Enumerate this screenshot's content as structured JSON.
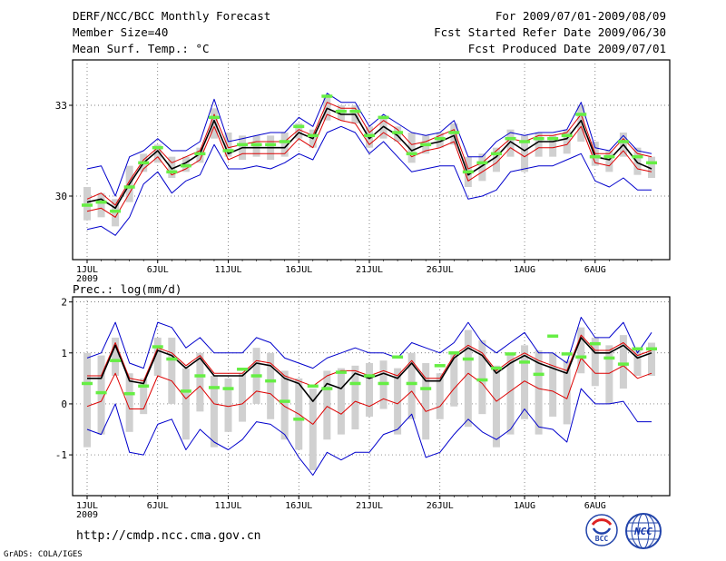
{
  "header": {
    "title": "DERF/NCC/BCC Monthly Forecast",
    "member_size": "Member Size=40",
    "variable_temp": "Mean Surf. Temp.: °C",
    "period": "For 2009/07/01-2009/08/09",
    "started_refer": "Fcst Started Refer Date 2009/06/30",
    "produced": "Fcst Produced Date 2009/07/01"
  },
  "footer": {
    "url": "http://cmdp.ncc.cma.gov.cn",
    "credit": "GrADS: COLA/IGES",
    "logo_bcc_text": "BCC",
    "logo_ncc_text": "NCC"
  },
  "colors": {
    "envelope": "#0000cc",
    "percentile": "#dd0000",
    "median": "#000000",
    "box": "#d0d0d0",
    "observed": "#66ee44"
  },
  "chart_data": [
    {
      "type": "line",
      "id": "temp",
      "title": "Mean Surf. Temp.: °C",
      "xlabel": "",
      "ylabel": "°C",
      "xlim": [
        0,
        40
      ],
      "ylim": [
        27.9,
        34.5
      ],
      "yticks": [
        30,
        33
      ],
      "ytick_labels": [
        "30",
        "33"
      ],
      "grid": true,
      "xtick_days": [
        0,
        5,
        10,
        15,
        20,
        25,
        31,
        36
      ],
      "xtick_labels": [
        "1JUL",
        "6JUL",
        "11JUL",
        "16JUL",
        "21JUL",
        "26JUL",
        "1AUG",
        "6AUG"
      ],
      "year_label": "2009",
      "series": [
        {
          "name": "max",
          "color": "envelope",
          "values": [
            30.9,
            31.0,
            30.0,
            31.3,
            31.5,
            31.9,
            31.5,
            31.5,
            31.8,
            33.2,
            31.8,
            31.9,
            32.0,
            32.1,
            32.1,
            32.6,
            32.3,
            33.4,
            33.1,
            33.1,
            32.3,
            32.7,
            32.4,
            32.1,
            32.0,
            32.1,
            32.5,
            31.3,
            31.3,
            31.8,
            32.1,
            32.0,
            32.1,
            32.1,
            32.2,
            33.1,
            31.6,
            31.5,
            32.0,
            31.5,
            31.4
          ]
        },
        {
          "name": "upper",
          "color": "percentile",
          "values": [
            29.9,
            30.1,
            29.7,
            30.5,
            31.2,
            31.6,
            31.1,
            31.3,
            31.5,
            32.7,
            31.6,
            31.7,
            31.8,
            31.8,
            31.8,
            32.2,
            32.0,
            33.1,
            32.9,
            32.9,
            32.1,
            32.5,
            32.2,
            31.7,
            31.8,
            32.0,
            32.2,
            30.9,
            31.1,
            31.5,
            31.9,
            31.8,
            32.0,
            32.0,
            32.1,
            32.7,
            31.4,
            31.4,
            31.9,
            31.4,
            31.3
          ]
        },
        {
          "name": "median",
          "color": "median",
          "values": [
            29.8,
            29.9,
            29.6,
            30.4,
            31.1,
            31.5,
            30.9,
            31.1,
            31.4,
            32.5,
            31.4,
            31.6,
            31.6,
            31.6,
            31.6,
            32.1,
            31.9,
            32.9,
            32.7,
            32.7,
            31.9,
            32.3,
            32.0,
            31.5,
            31.7,
            31.8,
            32.0,
            30.7,
            31.0,
            31.3,
            31.8,
            31.5,
            31.8,
            31.8,
            31.9,
            32.5,
            31.3,
            31.2,
            31.7,
            31.1,
            30.9
          ]
        },
        {
          "name": "lower",
          "color": "percentile",
          "values": [
            29.5,
            29.6,
            29.3,
            30.1,
            30.9,
            31.3,
            30.7,
            30.9,
            31.2,
            32.3,
            31.2,
            31.4,
            31.4,
            31.4,
            31.4,
            31.9,
            31.6,
            32.7,
            32.5,
            32.4,
            31.7,
            32.1,
            31.8,
            31.3,
            31.5,
            31.6,
            31.8,
            30.5,
            30.8,
            31.1,
            31.6,
            31.3,
            31.6,
            31.6,
            31.7,
            32.3,
            31.1,
            31.0,
            31.5,
            30.9,
            30.8
          ]
        },
        {
          "name": "min",
          "color": "envelope",
          "values": [
            28.9,
            29.0,
            28.7,
            29.3,
            30.4,
            30.8,
            30.1,
            30.5,
            30.7,
            31.7,
            30.9,
            30.9,
            31.0,
            30.9,
            31.1,
            31.4,
            31.2,
            32.1,
            32.3,
            32.1,
            31.4,
            31.8,
            31.3,
            30.8,
            30.9,
            31.0,
            31.0,
            29.9,
            30.0,
            30.2,
            30.8,
            30.9,
            31.0,
            31.0,
            31.2,
            31.4,
            30.5,
            30.3,
            30.6,
            30.2,
            30.2
          ]
        }
      ],
      "boxes": [
        [
          29.2,
          30.3
        ],
        [
          29.3,
          30.1
        ],
        [
          29.0,
          29.9
        ],
        [
          29.8,
          31.0
        ],
        [
          30.8,
          31.4
        ],
        [
          31.1,
          31.7
        ],
        [
          30.6,
          31.3
        ],
        [
          30.8,
          31.3
        ],
        [
          31.1,
          31.6
        ],
        [
          31.9,
          32.9
        ],
        [
          31.3,
          32.1
        ],
        [
          31.2,
          32.0
        ],
        [
          31.3,
          32.0
        ],
        [
          31.2,
          32.0
        ],
        [
          31.3,
          32.1
        ],
        [
          31.9,
          32.4
        ],
        [
          31.6,
          32.2
        ],
        [
          32.5,
          33.3
        ],
        [
          32.5,
          33.0
        ],
        [
          32.4,
          33.0
        ],
        [
          31.6,
          32.3
        ],
        [
          31.9,
          32.6
        ],
        [
          31.8,
          32.3
        ],
        [
          31.1,
          32.1
        ],
        [
          31.4,
          32.0
        ],
        [
          31.6,
          32.1
        ],
        [
          31.7,
          32.4
        ],
        [
          30.3,
          31.3
        ],
        [
          30.5,
          31.4
        ],
        [
          30.8,
          31.6
        ],
        [
          31.3,
          32.2
        ],
        [
          30.8,
          32.0
        ],
        [
          31.3,
          32.1
        ],
        [
          31.3,
          32.0
        ],
        [
          31.4,
          32.2
        ],
        [
          31.8,
          33.0
        ],
        [
          31.0,
          31.8
        ],
        [
          30.8,
          31.5
        ],
        [
          31.3,
          32.1
        ],
        [
          30.7,
          31.6
        ],
        [
          30.6,
          31.3
        ]
      ],
      "observed": [
        29.7,
        29.8,
        29.5,
        30.3,
        31.1,
        31.6,
        30.8,
        31.0,
        31.4,
        32.6,
        31.5,
        31.7,
        31.7,
        31.7,
        31.8,
        32.3,
        32.0,
        33.3,
        32.8,
        32.8,
        32.0,
        32.6,
        32.1,
        31.4,
        31.7,
        31.9,
        32.1,
        30.8,
        31.1,
        31.4,
        31.9,
        31.8,
        31.9,
        31.9,
        32.0,
        32.7,
        31.3,
        31.3,
        31.8,
        31.3,
        31.1
      ]
    },
    {
      "type": "line",
      "id": "prec",
      "title": "Prec.: log(mm/d)",
      "xlabel": "",
      "ylabel": "log(mm/d)",
      "xlim": [
        0,
        40
      ],
      "ylim": [
        -1.8,
        2.1
      ],
      "yticks": [
        -1,
        0,
        1,
        2
      ],
      "ytick_labels": [
        "-1",
        "0",
        "1",
        "2"
      ],
      "grid": true,
      "xtick_days": [
        0,
        5,
        10,
        15,
        20,
        25,
        31,
        36
      ],
      "xtick_labels": [
        "1JUL",
        "6JUL",
        "11JUL",
        "16JUL",
        "21JUL",
        "26JUL",
        "1AUG",
        "6AUG"
      ],
      "year_label": "2009",
      "series": [
        {
          "name": "max",
          "color": "envelope",
          "values": [
            0.9,
            1.0,
            1.6,
            0.8,
            0.7,
            1.6,
            1.5,
            1.1,
            1.3,
            1.0,
            1.0,
            1.0,
            1.3,
            1.2,
            0.9,
            0.8,
            0.7,
            0.9,
            1.0,
            1.1,
            1.0,
            1.0,
            0.9,
            1.2,
            1.1,
            1.0,
            1.2,
            1.6,
            1.2,
            1.0,
            1.2,
            1.4,
            1.0,
            1.0,
            0.8,
            1.7,
            1.3,
            1.3,
            1.6,
            1.0,
            1.4
          ]
        },
        {
          "name": "upper",
          "color": "percentile",
          "values": [
            0.55,
            0.55,
            1.2,
            0.5,
            0.45,
            1.1,
            1.0,
            0.75,
            0.95,
            0.6,
            0.6,
            0.6,
            0.85,
            0.8,
            0.55,
            0.45,
            0.35,
            0.55,
            0.65,
            0.65,
            0.55,
            0.65,
            0.55,
            0.85,
            0.5,
            0.5,
            0.95,
            1.15,
            1.0,
            0.65,
            0.85,
            1.0,
            0.85,
            0.75,
            0.65,
            1.35,
            1.05,
            1.05,
            1.2,
            0.95,
            1.05
          ]
        },
        {
          "name": "median",
          "color": "median",
          "values": [
            0.5,
            0.5,
            1.15,
            0.45,
            0.4,
            1.05,
            0.95,
            0.7,
            0.9,
            0.55,
            0.55,
            0.55,
            0.8,
            0.75,
            0.5,
            0.4,
            0.05,
            0.4,
            0.3,
            0.6,
            0.5,
            0.6,
            0.5,
            0.8,
            0.45,
            0.45,
            0.9,
            1.1,
            0.95,
            0.6,
            0.8,
            0.95,
            0.8,
            0.7,
            0.6,
            1.3,
            1.0,
            1.0,
            1.15,
            0.9,
            1.0
          ]
        },
        {
          "name": "lower",
          "color": "percentile",
          "values": [
            -0.05,
            0.05,
            0.6,
            -0.1,
            -0.1,
            0.55,
            0.45,
            0.1,
            0.35,
            0.0,
            -0.05,
            0.0,
            0.25,
            0.2,
            -0.05,
            -0.2,
            -0.4,
            -0.05,
            -0.2,
            0.05,
            -0.05,
            0.1,
            0.0,
            0.25,
            -0.15,
            -0.05,
            0.3,
            0.6,
            0.4,
            0.05,
            0.25,
            0.45,
            0.3,
            0.25,
            0.1,
            0.9,
            0.6,
            0.6,
            0.75,
            0.5,
            0.6
          ]
        },
        {
          "name": "min",
          "color": "envelope",
          "values": [
            -0.5,
            -0.6,
            0.0,
            -0.95,
            -1.0,
            -0.4,
            -0.3,
            -0.9,
            -0.5,
            -0.75,
            -0.9,
            -0.7,
            -0.35,
            -0.4,
            -0.6,
            -1.05,
            -1.4,
            -0.95,
            -1.1,
            -0.95,
            -0.95,
            -0.6,
            -0.5,
            -0.2,
            -1.05,
            -0.95,
            -0.6,
            -0.3,
            -0.55,
            -0.7,
            -0.5,
            -0.1,
            -0.45,
            -0.5,
            -0.75,
            0.3,
            0.0,
            0.0,
            0.05,
            -0.35,
            -0.35
          ]
        }
      ],
      "boxes": [
        [
          -0.85,
          1.0
        ],
        [
          -0.6,
          0.95
        ],
        [
          0.55,
          1.3
        ],
        [
          -0.55,
          0.6
        ],
        [
          -0.2,
          0.5
        ],
        [
          0.55,
          1.3
        ],
        [
          0.0,
          1.3
        ],
        [
          -0.7,
          0.7
        ],
        [
          -0.15,
          1.0
        ],
        [
          -0.85,
          0.55
        ],
        [
          -0.55,
          0.5
        ],
        [
          -0.35,
          0.6
        ],
        [
          0.0,
          1.1
        ],
        [
          -0.3,
          1.0
        ],
        [
          -0.7,
          0.65
        ],
        [
          -0.9,
          0.5
        ],
        [
          -1.3,
          0.3
        ],
        [
          -0.7,
          0.65
        ],
        [
          -0.6,
          0.7
        ],
        [
          -0.5,
          0.75
        ],
        [
          -0.25,
          0.8
        ],
        [
          -0.1,
          0.85
        ],
        [
          -0.6,
          0.7
        ],
        [
          -0.3,
          1.0
        ],
        [
          -0.7,
          0.8
        ],
        [
          -0.3,
          0.6
        ],
        [
          -0.05,
          1.0
        ],
        [
          -0.45,
          1.45
        ],
        [
          -0.2,
          1.25
        ],
        [
          -0.85,
          0.75
        ],
        [
          -0.6,
          1.0
        ],
        [
          -0.3,
          1.15
        ],
        [
          -0.6,
          1.05
        ],
        [
          -0.25,
          1.0
        ],
        [
          -0.4,
          0.85
        ],
        [
          0.6,
          1.5
        ],
        [
          0.35,
          1.3
        ],
        [
          0.0,
          1.15
        ],
        [
          0.3,
          1.35
        ],
        [
          0.55,
          1.05
        ],
        [
          0.55,
          1.2
        ]
      ],
      "observed": [
        0.4,
        0.22,
        0.85,
        0.2,
        0.35,
        1.12,
        0.88,
        0.25,
        0.55,
        0.32,
        0.3,
        0.68,
        0.55,
        0.45,
        0.05,
        -0.3,
        0.35,
        0.3,
        0.62,
        0.4,
        0.55,
        0.4,
        0.92,
        0.4,
        0.3,
        0.75,
        1.0,
        0.88,
        0.47,
        0.7,
        0.98,
        0.82,
        0.58,
        1.33,
        0.98,
        0.92,
        1.18,
        0.9,
        0.78,
        1.08,
        1.08
      ]
    }
  ]
}
